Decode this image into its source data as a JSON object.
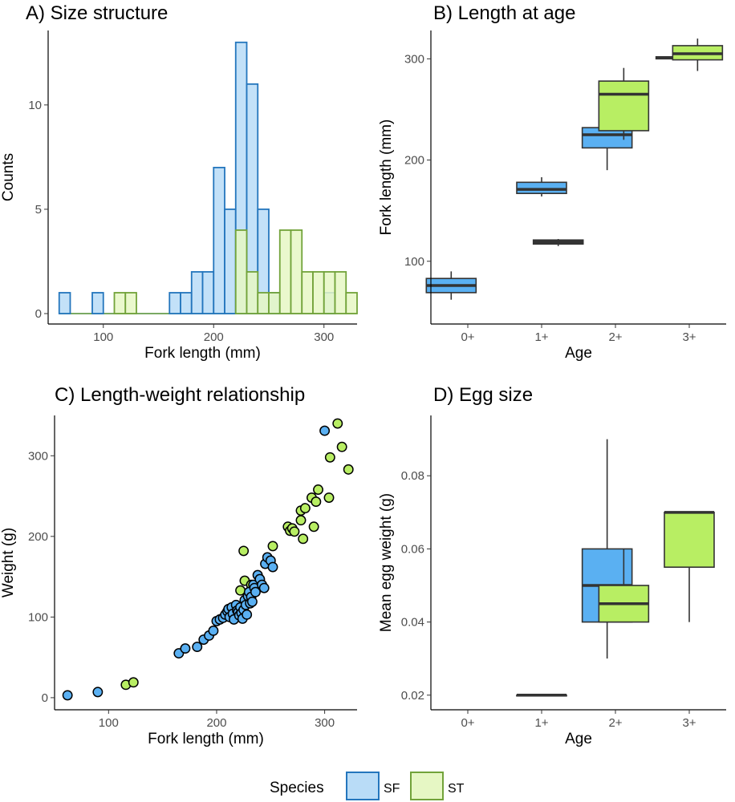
{
  "colors": {
    "sf_fill": "#b9dcf7",
    "sf_line": "#2476bd",
    "sf_box": "#5ab0f2",
    "sf_point": "#5ab0f2",
    "st_fill": "#e6f7c4",
    "st_line": "#72a33a",
    "st_box": "#b8ee63",
    "st_point": "#b8ee63",
    "axis": "#000000",
    "tick_text": "#4d4d4d",
    "box_line": "#333333"
  },
  "legend": {
    "title": "Species",
    "items": [
      "SF",
      "ST"
    ]
  },
  "chart_data": [
    {
      "id": "A",
      "type": "bar",
      "title": "A) Size structure",
      "xlabel": "Fork length (mm)",
      "ylabel": "Counts",
      "xlim": [
        50,
        330
      ],
      "ylim": [
        0,
        13.3
      ],
      "bin_width": 10,
      "xticks": [
        100,
        200,
        300
      ],
      "yticks": [
        0,
        5,
        10
      ],
      "series": [
        {
          "name": "SF",
          "bins": [
            {
              "x0": 60,
              "count": 1
            },
            {
              "x0": 90,
              "count": 1
            },
            {
              "x0": 160,
              "count": 1
            },
            {
              "x0": 170,
              "count": 1
            },
            {
              "x0": 180,
              "count": 2
            },
            {
              "x0": 190,
              "count": 2
            },
            {
              "x0": 200,
              "count": 7
            },
            {
              "x0": 210,
              "count": 5
            },
            {
              "x0": 220,
              "count": 13
            },
            {
              "x0": 230,
              "count": 11
            },
            {
              "x0": 240,
              "count": 5
            },
            {
              "x0": 250,
              "count": 1
            },
            {
              "x0": 300,
              "count": 1
            }
          ]
        },
        {
          "name": "ST",
          "bins": [
            {
              "x0": 110,
              "count": 1
            },
            {
              "x0": 120,
              "count": 1
            },
            {
              "x0": 220,
              "count": 4
            },
            {
              "x0": 230,
              "count": 2
            },
            {
              "x0": 240,
              "count": 1
            },
            {
              "x0": 250,
              "count": 1
            },
            {
              "x0": 260,
              "count": 4
            },
            {
              "x0": 270,
              "count": 4
            },
            {
              "x0": 280,
              "count": 2
            },
            {
              "x0": 290,
              "count": 2
            },
            {
              "x0": 300,
              "count": 2
            },
            {
              "x0": 310,
              "count": 2
            },
            {
              "x0": 320,
              "count": 1
            }
          ]
        }
      ]
    },
    {
      "id": "B",
      "type": "box",
      "title": "B) Length at age",
      "xlabel": "Age",
      "ylabel": "Fork length (mm)",
      "categories": [
        "0+",
        "1+",
        "2+",
        "3+"
      ],
      "ylim": [
        38,
        328
      ],
      "yticks": [
        100,
        200,
        300
      ],
      "boxes": [
        {
          "species": "SF",
          "age": "0+",
          "pos": -0.5,
          "min": 62,
          "q1": 69,
          "median": 76,
          "q3": 83,
          "max": 90
        },
        {
          "species": "SF",
          "age": "1+",
          "pos": 0,
          "min": 164,
          "q1": 167,
          "median": 171,
          "q3": 178,
          "max": 183
        },
        {
          "species": "ST",
          "age": "1+",
          "pos": 0.5,
          "min": 115,
          "q1": 117,
          "median": 119,
          "q3": 121,
          "max": 122
        },
        {
          "species": "SF",
          "age": "2+",
          "pos": -0.25,
          "min": 190,
          "q1": 212,
          "median": 225,
          "q3": 232,
          "max": 252
        },
        {
          "species": "ST",
          "age": "2+",
          "pos": 0.25,
          "min": 220,
          "q1": 229,
          "median": 265,
          "q3": 278,
          "max": 291
        },
        {
          "species": "SF",
          "age": "3+",
          "pos": -0.25,
          "min": 300,
          "q1": 300,
          "median": 301,
          "q3": 302,
          "max": 302
        },
        {
          "species": "ST",
          "age": "3+",
          "pos": 0.25,
          "min": 288,
          "q1": 299,
          "median": 305,
          "q3": 313,
          "max": 320
        }
      ]
    },
    {
      "id": "C",
      "type": "scatter",
      "title": "C) Length-weight relationship",
      "xlabel": "Fork length (mm)",
      "ylabel": "Weight (g)",
      "xlim": [
        50,
        330
      ],
      "ylim": [
        -15,
        350
      ],
      "xticks": [
        100,
        200,
        300
      ],
      "yticks": [
        0,
        100,
        200,
        300
      ],
      "series": [
        {
          "name": "ST",
          "points": [
            [
              116,
              16
            ],
            [
              123,
              19
            ],
            [
              225,
              182
            ],
            [
              222,
              133
            ],
            [
              226,
              145
            ],
            [
              232,
              140
            ],
            [
              240,
              146
            ],
            [
              252,
              188
            ],
            [
              266,
              212
            ],
            [
              268,
              207
            ],
            [
              270,
              210
            ],
            [
              272,
              206
            ],
            [
              278,
              220
            ],
            [
              278,
              232
            ],
            [
              280,
              197
            ],
            [
              282,
              235
            ],
            [
              288,
              248
            ],
            [
              290,
              212
            ],
            [
              292,
              243
            ],
            [
              294,
              258
            ],
            [
              304,
              248
            ],
            [
              305,
              298
            ],
            [
              312,
              340
            ],
            [
              316,
              311
            ],
            [
              322,
              283
            ]
          ]
        },
        {
          "name": "SF",
          "points": [
            [
              62,
              3
            ],
            [
              90,
              7
            ],
            [
              165,
              55
            ],
            [
              171,
              61
            ],
            [
              182,
              63
            ],
            [
              188,
              72
            ],
            [
              193,
              77
            ],
            [
              197,
              83
            ],
            [
              200,
              95
            ],
            [
              203,
              97
            ],
            [
              206,
              99
            ],
            [
              208,
              103
            ],
            [
              210,
              107
            ],
            [
              211,
              110
            ],
            [
              212,
              100
            ],
            [
              214,
              112
            ],
            [
              215,
              104
            ],
            [
              216,
              97
            ],
            [
              218,
              115
            ],
            [
              219,
              108
            ],
            [
              220,
              106
            ],
            [
              221,
              102
            ],
            [
              222,
              112
            ],
            [
              223,
              105
            ],
            [
              224,
              98
            ],
            [
              225,
              109
            ],
            [
              226,
              121
            ],
            [
              227,
              115
            ],
            [
              228,
              103
            ],
            [
              229,
              126
            ],
            [
              230,
              131
            ],
            [
              231,
              117
            ],
            [
              232,
              125
            ],
            [
              233,
              119
            ],
            [
              234,
              140
            ],
            [
              235,
              136
            ],
            [
              236,
              131
            ],
            [
              238,
              152
            ],
            [
              240,
              147
            ],
            [
              242,
              140
            ],
            [
              244,
              136
            ],
            [
              245,
              166
            ],
            [
              247,
              174
            ],
            [
              250,
              170
            ],
            [
              252,
              162
            ],
            [
              300,
              331
            ]
          ]
        }
      ]
    },
    {
      "id": "D",
      "type": "box",
      "title": "D) Egg size",
      "xlabel": "Age",
      "ylabel": "Mean egg weight (g)",
      "categories": [
        "0+",
        "1+",
        "2+",
        "3+"
      ],
      "ylim": [
        0.016,
        0.0965
      ],
      "yticks": [
        0.02,
        0.04,
        0.06,
        0.08
      ],
      "boxes": [
        {
          "species": "SF",
          "age": "1+",
          "pos": 0,
          "min": 0.02,
          "q1": 0.02,
          "median": 0.02,
          "q3": 0.02,
          "max": 0.02
        },
        {
          "species": "SF",
          "age": "2+",
          "pos": -0.25,
          "min": 0.03,
          "q1": 0.04,
          "median": 0.05,
          "q3": 0.06,
          "max": 0.09
        },
        {
          "species": "ST",
          "age": "2+",
          "pos": 0.25,
          "min": 0.04,
          "q1": 0.04,
          "median": 0.045,
          "q3": 0.05,
          "max": 0.06
        },
        {
          "species": "ST",
          "age": "3+",
          "pos": 0,
          "min": 0.04,
          "q1": 0.055,
          "median": 0.07,
          "q3": 0.07,
          "max": 0.07
        }
      ]
    }
  ]
}
